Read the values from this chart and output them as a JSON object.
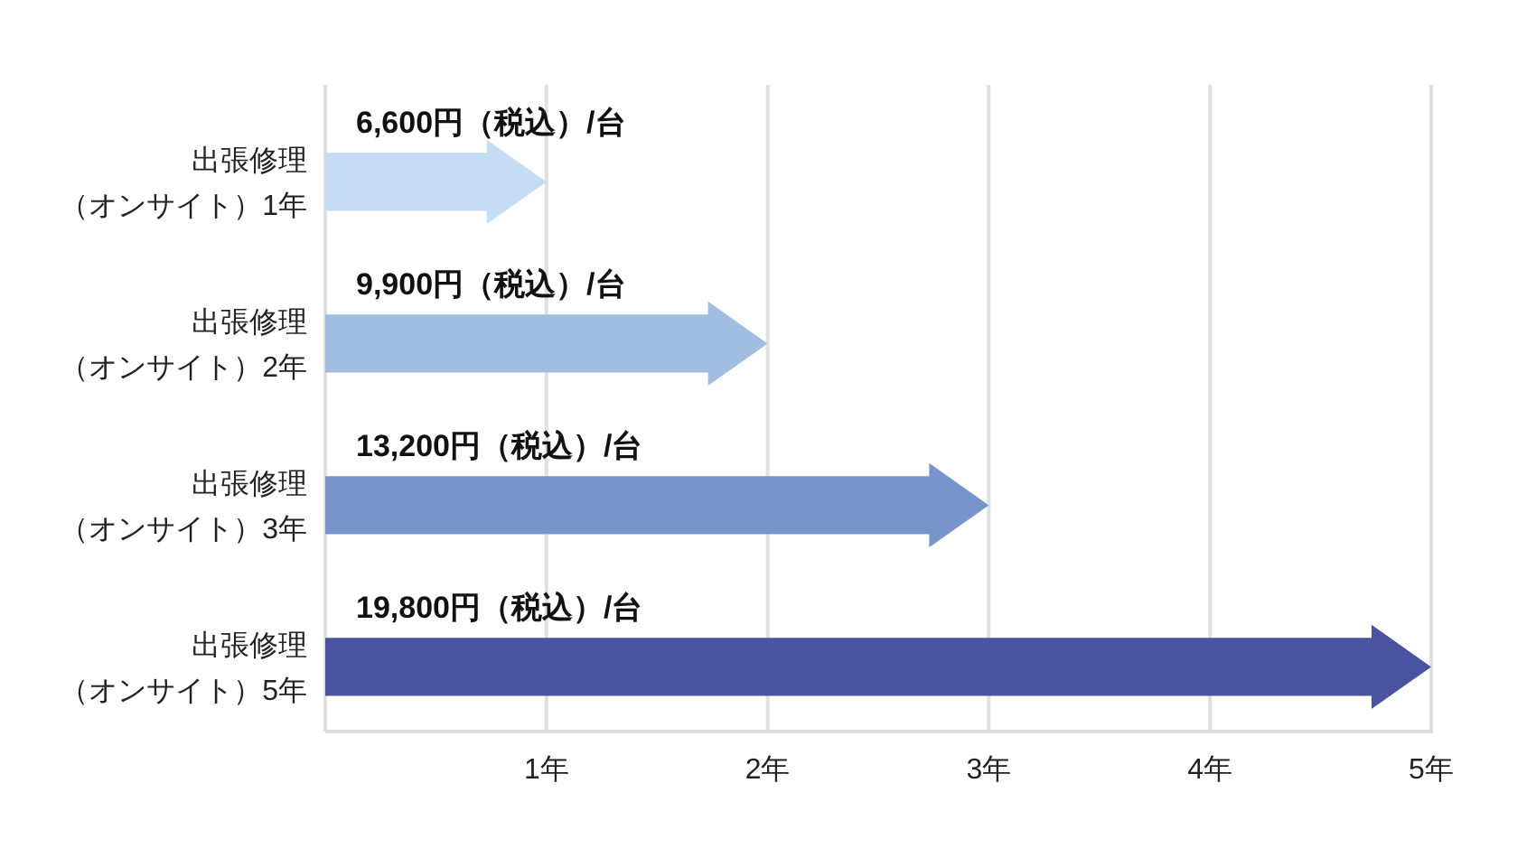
{
  "chart_data": {
    "type": "bar",
    "orientation": "horizontal",
    "categories": [
      "出張修理（オンサイト）1年",
      "出張修理（オンサイト）2年",
      "出張修理（オンサイト）3年",
      "出張修理（オンサイト）5年"
    ],
    "values": [
      1,
      2,
      3,
      5
    ],
    "colors": [
      "#c5ddf4",
      "#a1bee0",
      "#7895cb",
      "#4953a0"
    ],
    "annotations": [
      "6,600円（税込）/台",
      "9,900円（税込）/台",
      "13,200円（税込）/台",
      "19,800円（税込）/台"
    ],
    "xlim": [
      0,
      5
    ],
    "xticks": [
      {
        "value": 0,
        "label": null
      },
      {
        "value": 1,
        "label": "1年"
      },
      {
        "value": 2,
        "label": "2年"
      },
      {
        "value": 3,
        "label": "3年"
      },
      {
        "value": 4,
        "label": "4年"
      },
      {
        "value": 5,
        "label": "5年"
      }
    ],
    "grid": "x"
  }
}
